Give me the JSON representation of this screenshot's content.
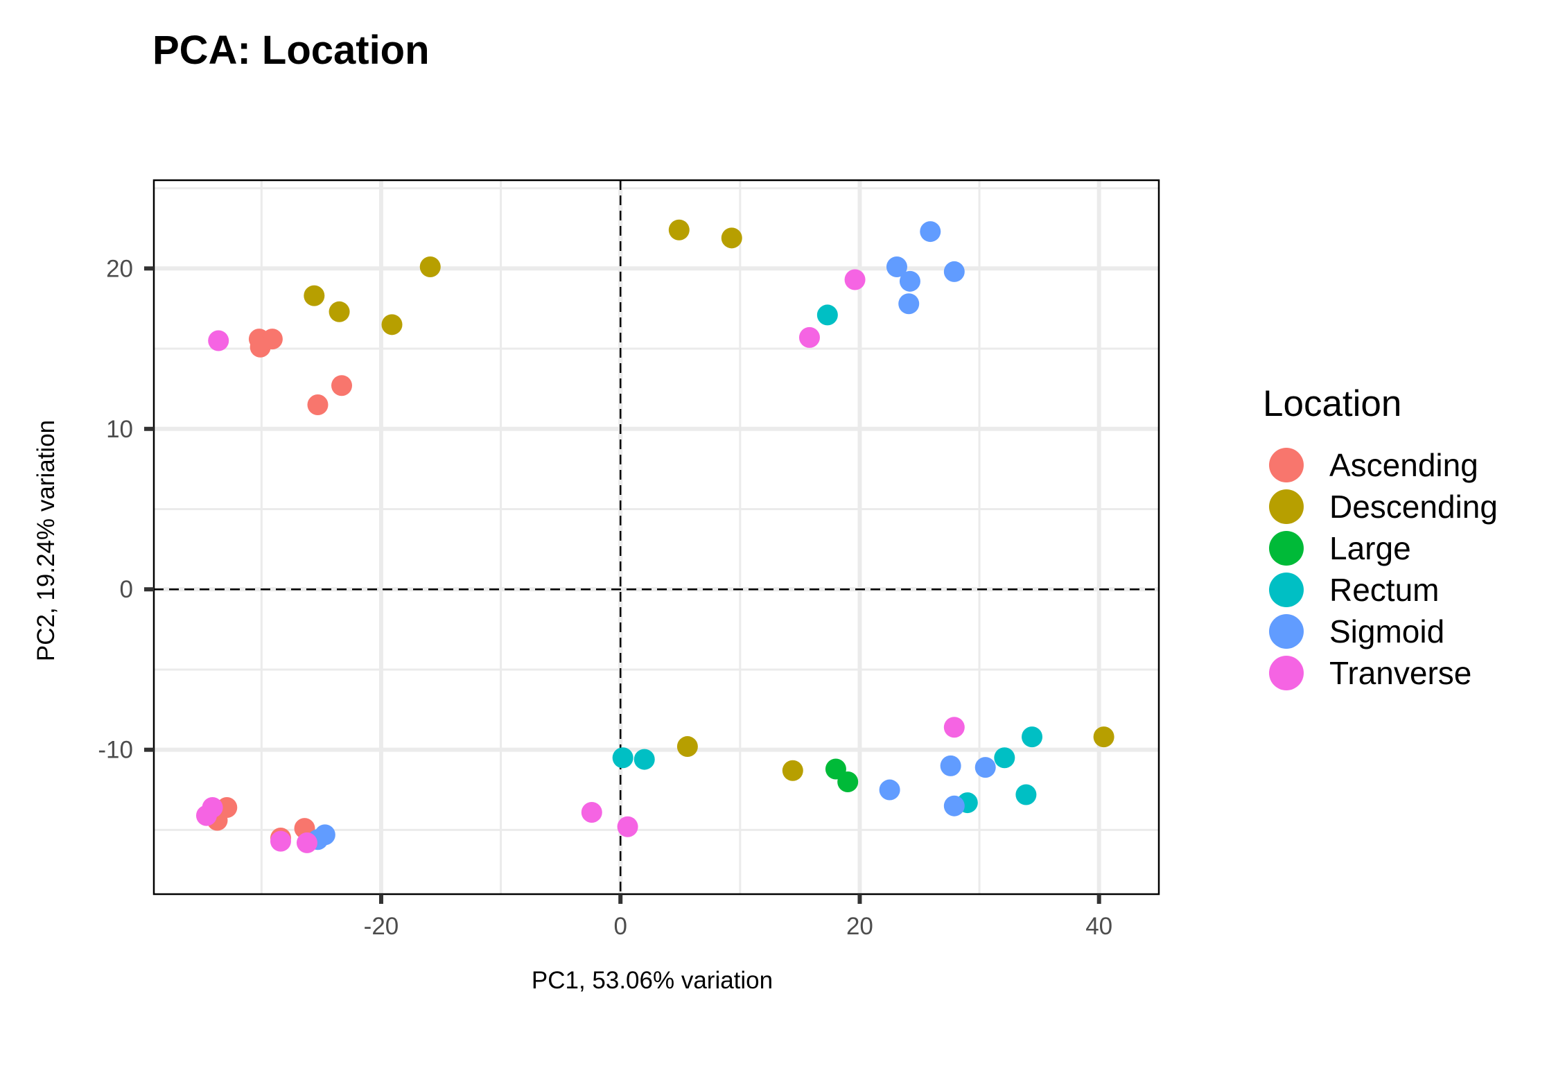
{
  "chart_data": {
    "type": "scatter",
    "title": "PCA: Location",
    "xlabel": "PC1, 53.06% variation",
    "ylabel": "PC2, 19.24% variation",
    "xlim": [
      -39,
      45
    ],
    "ylim": [
      -19,
      25.5
    ],
    "xticks": [
      -20,
      0,
      20,
      40
    ],
    "yticks": [
      -10,
      0,
      10,
      20
    ],
    "xtick_labels": [
      "-20",
      "0",
      "20",
      "40"
    ],
    "ytick_labels": [
      "-10",
      "0",
      "10",
      "20"
    ],
    "grid": true,
    "reference_lines": {
      "x": 0,
      "y": 0,
      "style": "dashed"
    },
    "legend": {
      "title": "Location",
      "position": "right"
    },
    "series": [
      {
        "name": "Ascending",
        "color": "#F8766D",
        "points": [
          [
            -30.2,
            15.6
          ],
          [
            -29.1,
            15.6
          ],
          [
            -30.1,
            15.1
          ],
          [
            -23.3,
            12.7
          ],
          [
            -25.3,
            11.5
          ],
          [
            -32.9,
            -13.6
          ],
          [
            -33.7,
            -14.4
          ],
          [
            -28.4,
            -15.5
          ],
          [
            -26.4,
            -14.9
          ]
        ]
      },
      {
        "name": "Descending",
        "color": "#B79F00",
        "points": [
          [
            -15.9,
            20.1
          ],
          [
            -25.6,
            18.3
          ],
          [
            -23.5,
            17.3
          ],
          [
            -19.1,
            16.5
          ],
          [
            4.9,
            22.4
          ],
          [
            9.3,
            21.9
          ],
          [
            5.6,
            -9.8
          ],
          [
            14.4,
            -11.3
          ],
          [
            40.4,
            -9.2
          ]
        ]
      },
      {
        "name": "Large",
        "color": "#00BA38",
        "points": [
          [
            18.0,
            -11.2
          ],
          [
            19.0,
            -12.0
          ]
        ]
      },
      {
        "name": "Rectum",
        "color": "#00BFC4",
        "points": [
          [
            17.3,
            17.1
          ],
          [
            0.2,
            -10.5
          ],
          [
            2.0,
            -10.6
          ],
          [
            34.4,
            -9.2
          ],
          [
            32.1,
            -10.5
          ],
          [
            33.9,
            -12.8
          ],
          [
            29.0,
            -13.3
          ]
        ]
      },
      {
        "name": "Sigmoid",
        "color": "#619CFF",
        "points": [
          [
            25.9,
            22.3
          ],
          [
            23.1,
            20.1
          ],
          [
            24.2,
            19.2
          ],
          [
            27.9,
            19.8
          ],
          [
            24.1,
            17.8
          ],
          [
            22.5,
            -12.5
          ],
          [
            27.6,
            -11.0
          ],
          [
            30.5,
            -11.1
          ],
          [
            27.9,
            -13.5
          ],
          [
            -25.3,
            -15.6
          ],
          [
            -24.7,
            -15.3
          ]
        ]
      },
      {
        "name": "Tranverse",
        "color": "#F564E3",
        "points": [
          [
            19.6,
            19.3
          ],
          [
            15.8,
            15.7
          ],
          [
            -33.6,
            15.5
          ],
          [
            27.9,
            -8.6
          ],
          [
            -2.4,
            -13.9
          ],
          [
            0.6,
            -14.8
          ],
          [
            -34.1,
            -13.6
          ],
          [
            -34.6,
            -14.1
          ],
          [
            -28.4,
            -15.7
          ],
          [
            -26.2,
            -15.8
          ]
        ]
      }
    ]
  }
}
